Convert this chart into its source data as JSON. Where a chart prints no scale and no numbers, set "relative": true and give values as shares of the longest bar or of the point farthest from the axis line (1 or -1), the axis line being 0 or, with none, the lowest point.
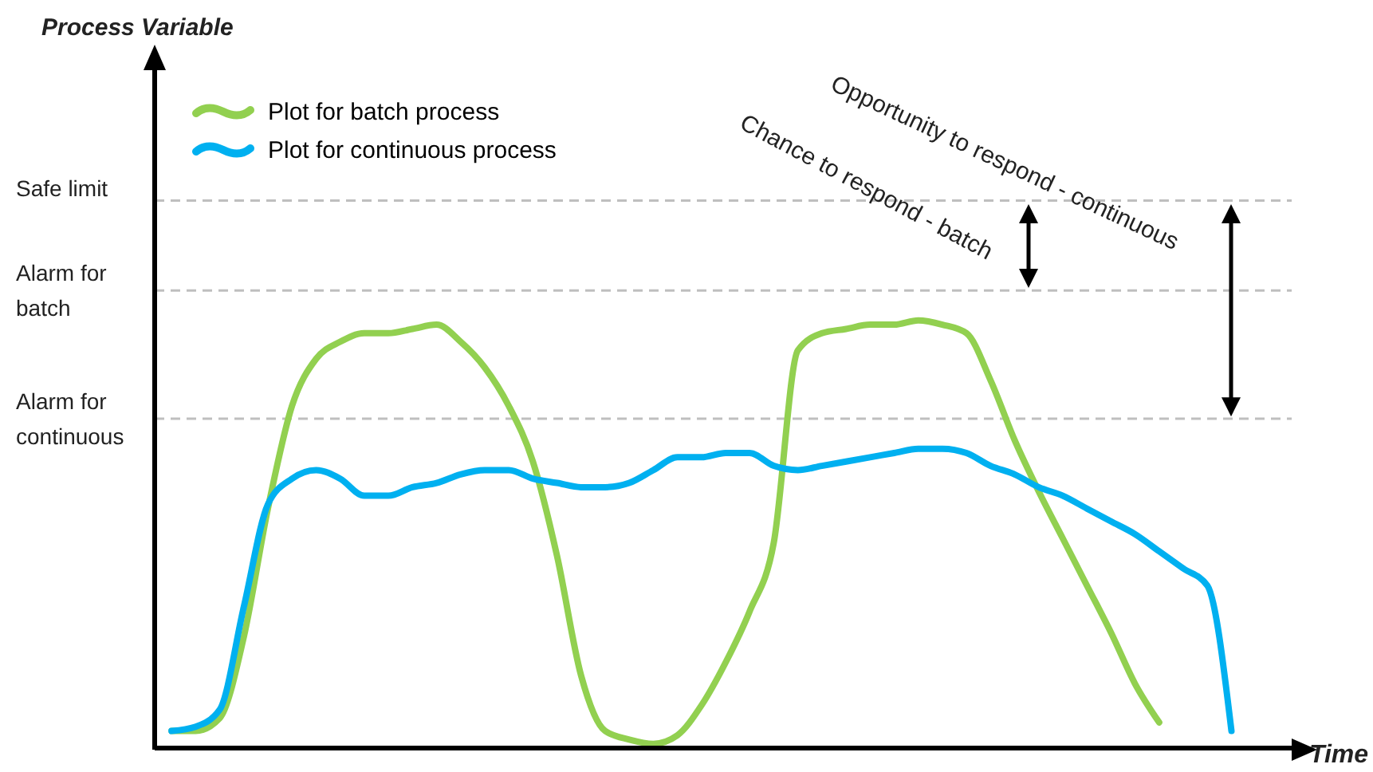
{
  "chart_data": {
    "type": "line",
    "relative": true,
    "xlabel": "Time",
    "legend": "top left",
    "categories": [
      null,
      null,
      null,
      null,
      null,
      null,
      null,
      null,
      null,
      null,
      null,
      null,
      null,
      null,
      null,
      null,
      null,
      null,
      null,
      null,
      null,
      null,
      null,
      null,
      null,
      null,
      null,
      null,
      null,
      null,
      null,
      null,
      null,
      null,
      null,
      null,
      null,
      null,
      null,
      null,
      null,
      null,
      null,
      null,
      null
    ],
    "series": [
      {
        "name": "Plot for batch process",
        "color": "#92d050",
        "values": [
          0.04,
          0.04,
          0.07,
          0.26,
          0.56,
          0.8,
          0.91,
          0.95,
          0.97,
          0.97,
          0.98,
          0.99,
          0.95,
          0.89,
          0.8,
          0.67,
          0.45,
          0.17,
          0.04,
          0.02,
          0.01,
          0.03,
          0.1,
          0.2,
          0.32,
          0.48,
          0.93,
          0.97,
          0.98,
          0.99,
          0.99,
          1,
          0.99,
          0.97,
          0.86,
          0.72,
          0.6,
          0.49,
          0.38,
          0.27,
          0.15,
          0.06,
          null,
          null,
          null
        ]
      },
      {
        "name": "Plot for continuous process",
        "color": "#00b0f0",
        "values": [
          0.04,
          0.05,
          0.09,
          0.33,
          0.57,
          0.63,
          0.65,
          0.63,
          0.59,
          0.59,
          0.61,
          0.62,
          0.64,
          0.65,
          0.65,
          0.63,
          0.62,
          0.61,
          0.61,
          0.62,
          0.65,
          0.68,
          0.68,
          0.69,
          0.69,
          0.66,
          0.65,
          0.66,
          0.67,
          0.68,
          0.69,
          0.7,
          0.7,
          0.69,
          0.66,
          0.64,
          0.61,
          0.59,
          0.56,
          0.53,
          0.5,
          0.46,
          0.42,
          0.38,
          0.04
        ]
      }
    ],
    "ref_lines": [
      {
        "axis": "y",
        "value": 1.28,
        "label": "Safe limit",
        "color": "#bfbfbf",
        "line_style": "dashed"
      },
      {
        "axis": "y",
        "value": 1.07,
        "label": "Alarm for batch",
        "color": "#bfbfbf",
        "line_style": "dashed"
      },
      {
        "axis": "y",
        "value": 0.77,
        "label": "Alarm for continuous",
        "color": "#bfbfbf",
        "line_style": "dashed"
      }
    ],
    "annotations": [
      "Opportunity to respond - continuous",
      "Chance to respond - batch",
      "Process Variable"
    ]
  }
}
